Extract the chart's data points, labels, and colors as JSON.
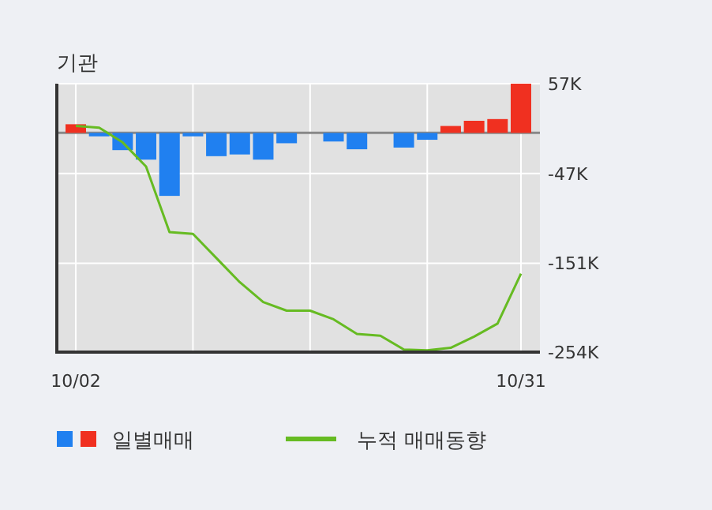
{
  "chart_data": {
    "type": "bar",
    "title": "기관",
    "categories": [
      "10/02",
      null,
      null,
      null,
      null,
      null,
      null,
      null,
      null,
      null,
      null,
      null,
      null,
      null,
      null,
      null,
      null,
      null,
      null,
      "10/31"
    ],
    "series": [
      {
        "name": "일별매매",
        "colors": [
          "#f03020",
          "#2080f0",
          "#2080f0",
          "#2080f0",
          "#2080f0",
          "#2080f0",
          "#2080f0",
          "#2080f0",
          "#2080f0",
          "#2080f0",
          "#2080f0",
          "#2080f0",
          "#2080f0",
          "#2080f0",
          "#2080f0",
          "#2080f0",
          "#f03020",
          "#f03020",
          "#f03020",
          "#f03020"
        ],
        "values": [
          10000,
          -4000,
          -20000,
          -31000,
          -73000,
          -4000,
          -27000,
          -25000,
          -31000,
          -12000,
          0,
          -10000,
          -19000,
          0,
          -17000,
          -8000,
          8000,
          14000,
          16000,
          57000
        ]
      },
      {
        "name": "누적 매매동향",
        "type": "line",
        "color": "#66bb22",
        "values": [
          8000,
          6000,
          -11000,
          -39000,
          -115000,
          -117000,
          -145000,
          -173000,
          -196000,
          -206000,
          -206000,
          -216000,
          -233000,
          -235000,
          -251000,
          -252000,
          -249000,
          -236000,
          -221000,
          -163000
        ]
      }
    ],
    "ylim": [
      -254000,
      57000
    ],
    "yticks": [
      {
        "value": 57000,
        "label": "57K"
      },
      {
        "value": -47000,
        "label": "-47K"
      },
      {
        "value": -151000,
        "label": "-151K"
      },
      {
        "value": -254000,
        "label": "-254K"
      }
    ],
    "grid": true,
    "legend": "bottom"
  }
}
